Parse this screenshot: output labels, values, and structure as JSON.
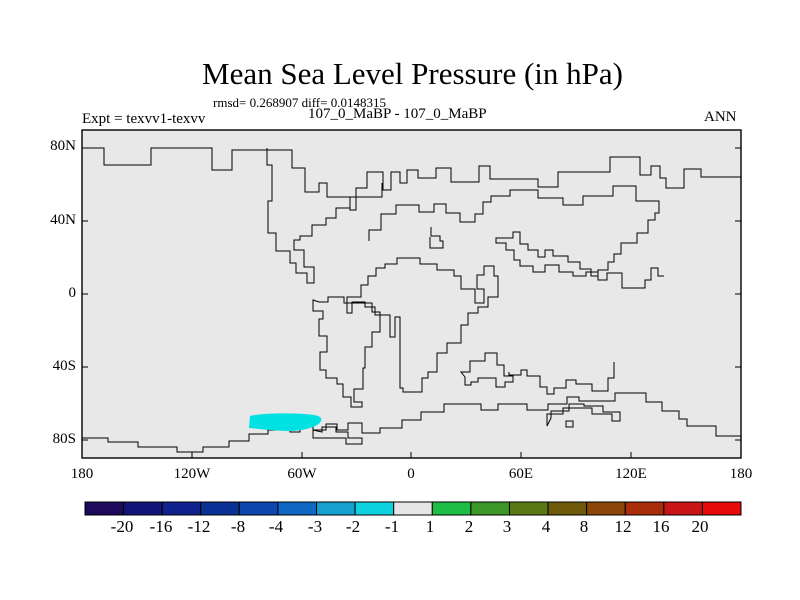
{
  "plot": {
    "title": "Mean Sea Level Pressure (in hPa)",
    "stats": "rmsd= 0.268907 diff= 0.0148315",
    "left_label": "Expt = texvv1-texvv",
    "center_label": "107_0_MaBP - 107_0_MaBP",
    "right_label": "ANN",
    "background_color": "#e8e8e8",
    "anomaly_color": "#00e1e1"
  },
  "axes": {
    "y_ticks": [
      "80N",
      "40N",
      "0",
      "40S",
      "80S"
    ],
    "x_ticks": [
      "180",
      "120W",
      "60W",
      "0",
      "60E",
      "120E",
      "180"
    ]
  },
  "colorbar": {
    "labels": [
      "-20",
      "-16",
      "-12",
      "-8",
      "-4",
      "-3",
      "-2",
      "-1",
      "1",
      "2",
      "3",
      "4",
      "8",
      "12",
      "16",
      "20"
    ],
    "colors": [
      "#1e0a5a",
      "#141478",
      "#10228e",
      "#0a3296",
      "#0c46ae",
      "#1068c4",
      "#15a0d2",
      "#0fd2e1",
      "#e6e6e6",
      "#1ebe46",
      "#3c9628",
      "#5a7814",
      "#6e5a0a",
      "#8c460a",
      "#aa2d0a",
      "#c81414",
      "#e60a0a"
    ]
  }
}
